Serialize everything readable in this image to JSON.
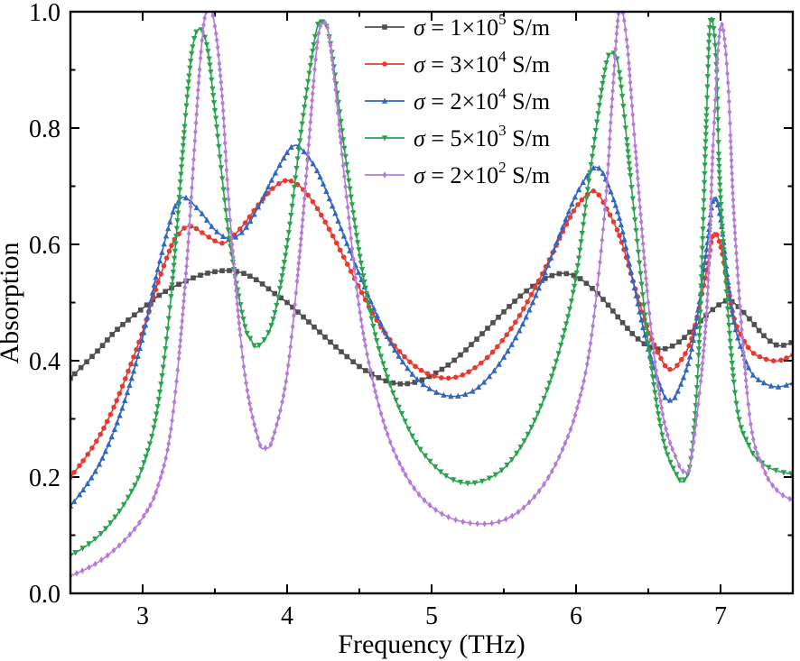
{
  "figure": {
    "background": "#ffffff",
    "frame_color": "#000000"
  },
  "chart_data": {
    "type": "line",
    "title": "",
    "xlabel": "Frequency (THz)",
    "ylabel": "Absorption",
    "xlim": [
      2.5,
      7.5
    ],
    "ylim": [
      0.0,
      1.0
    ],
    "grid": false,
    "legend_position": "top-center",
    "x_major_ticks": [
      3,
      4,
      5,
      6,
      7
    ],
    "x_tick_labels": [
      "3",
      "4",
      "5",
      "6",
      "7"
    ],
    "x_minor_ticks": [
      2.5,
      3.5,
      4.5,
      5.5,
      6.5,
      7.5
    ],
    "y_major_ticks": [
      0.0,
      0.2,
      0.4,
      0.6,
      0.8,
      1.0
    ],
    "y_tick_labels": [
      "0.0",
      "0.2",
      "0.4",
      "0.6",
      "0.8",
      "1.0"
    ],
    "y_minor_ticks": [
      0.1,
      0.3,
      0.5,
      0.7,
      0.9
    ],
    "series": [
      {
        "id": "sigma-1e5",
        "label": "σ = 1×10⁵ S/m",
        "label_sigma": "σ",
        "label_eq": " = 1×10",
        "label_exp": "5",
        "label_unit": " S/m",
        "color": "#4f4f4f",
        "marker": "square",
        "points": [
          [
            2.5,
            0.37
          ],
          [
            2.6,
            0.395
          ],
          [
            2.7,
            0.42
          ],
          [
            2.8,
            0.448
          ],
          [
            2.9,
            0.47
          ],
          [
            3.0,
            0.49
          ],
          [
            3.1,
            0.51
          ],
          [
            3.2,
            0.525
          ],
          [
            3.3,
            0.537
          ],
          [
            3.4,
            0.547
          ],
          [
            3.5,
            0.553
          ],
          [
            3.6,
            0.555
          ],
          [
            3.7,
            0.55
          ],
          [
            3.8,
            0.537
          ],
          [
            3.9,
            0.518
          ],
          [
            4.0,
            0.5
          ],
          [
            4.1,
            0.478
          ],
          [
            4.2,
            0.455
          ],
          [
            4.3,
            0.432
          ],
          [
            4.4,
            0.41
          ],
          [
            4.5,
            0.39
          ],
          [
            4.6,
            0.375
          ],
          [
            4.7,
            0.364
          ],
          [
            4.8,
            0.36
          ],
          [
            4.9,
            0.364
          ],
          [
            5.0,
            0.375
          ],
          [
            5.1,
            0.39
          ],
          [
            5.2,
            0.41
          ],
          [
            5.3,
            0.434
          ],
          [
            5.4,
            0.459
          ],
          [
            5.5,
            0.484
          ],
          [
            5.6,
            0.508
          ],
          [
            5.7,
            0.528
          ],
          [
            5.8,
            0.543
          ],
          [
            5.9,
            0.55
          ],
          [
            6.0,
            0.545
          ],
          [
            6.1,
            0.527
          ],
          [
            6.2,
            0.502
          ],
          [
            6.3,
            0.472
          ],
          [
            6.4,
            0.444
          ],
          [
            6.5,
            0.425
          ],
          [
            6.6,
            0.42
          ],
          [
            6.7,
            0.43
          ],
          [
            6.8,
            0.452
          ],
          [
            6.9,
            0.478
          ],
          [
            7.0,
            0.498
          ],
          [
            7.05,
            0.503
          ],
          [
            7.1,
            0.498
          ],
          [
            7.2,
            0.472
          ],
          [
            7.3,
            0.443
          ],
          [
            7.4,
            0.426
          ],
          [
            7.5,
            0.432
          ]
        ]
      },
      {
        "id": "sigma-3e4",
        "label": "σ = 3×10⁴ S/m",
        "label_sigma": "σ",
        "label_eq": " = 3×10",
        "label_exp": "4",
        "label_unit": " S/m",
        "color": "#e8392f",
        "marker": "circle",
        "points": [
          [
            2.5,
            0.2
          ],
          [
            2.6,
            0.232
          ],
          [
            2.7,
            0.27
          ],
          [
            2.8,
            0.32
          ],
          [
            2.9,
            0.382
          ],
          [
            3.0,
            0.45
          ],
          [
            3.1,
            0.53
          ],
          [
            3.2,
            0.598
          ],
          [
            3.25,
            0.618
          ],
          [
            3.3,
            0.63
          ],
          [
            3.35,
            0.63
          ],
          [
            3.4,
            0.622
          ],
          [
            3.5,
            0.606
          ],
          [
            3.55,
            0.602
          ],
          [
            3.6,
            0.608
          ],
          [
            3.7,
            0.634
          ],
          [
            3.8,
            0.668
          ],
          [
            3.9,
            0.696
          ],
          [
            4.0,
            0.71
          ],
          [
            4.1,
            0.697
          ],
          [
            4.2,
            0.665
          ],
          [
            4.3,
            0.622
          ],
          [
            4.4,
            0.574
          ],
          [
            4.5,
            0.525
          ],
          [
            4.6,
            0.478
          ],
          [
            4.7,
            0.44
          ],
          [
            4.8,
            0.41
          ],
          [
            4.9,
            0.388
          ],
          [
            5.0,
            0.375
          ],
          [
            5.1,
            0.37
          ],
          [
            5.2,
            0.374
          ],
          [
            5.3,
            0.388
          ],
          [
            5.4,
            0.409
          ],
          [
            5.5,
            0.438
          ],
          [
            5.6,
            0.474
          ],
          [
            5.7,
            0.518
          ],
          [
            5.8,
            0.566
          ],
          [
            5.9,
            0.618
          ],
          [
            6.0,
            0.664
          ],
          [
            6.1,
            0.69
          ],
          [
            6.15,
            0.687
          ],
          [
            6.2,
            0.667
          ],
          [
            6.3,
            0.615
          ],
          [
            6.4,
            0.532
          ],
          [
            6.5,
            0.452
          ],
          [
            6.6,
            0.398
          ],
          [
            6.65,
            0.385
          ],
          [
            6.7,
            0.392
          ],
          [
            6.8,
            0.438
          ],
          [
            6.9,
            0.55
          ],
          [
            6.95,
            0.618
          ],
          [
            7.0,
            0.598
          ],
          [
            7.05,
            0.53
          ],
          [
            7.1,
            0.468
          ],
          [
            7.2,
            0.42
          ],
          [
            7.3,
            0.404
          ],
          [
            7.4,
            0.4
          ],
          [
            7.5,
            0.41
          ]
        ]
      },
      {
        "id": "sigma-2e4",
        "label": "σ = 2×10⁴ S/m",
        "label_sigma": "σ",
        "label_eq": " = 2×10",
        "label_exp": "4",
        "label_unit": " S/m",
        "color": "#3166c2",
        "marker": "triangle-up",
        "points": [
          [
            2.5,
            0.15
          ],
          [
            2.6,
            0.182
          ],
          [
            2.7,
            0.222
          ],
          [
            2.8,
            0.278
          ],
          [
            2.9,
            0.35
          ],
          [
            3.0,
            0.44
          ],
          [
            3.1,
            0.552
          ],
          [
            3.2,
            0.648
          ],
          [
            3.25,
            0.675
          ],
          [
            3.3,
            0.68
          ],
          [
            3.4,
            0.656
          ],
          [
            3.5,
            0.625
          ],
          [
            3.6,
            0.61
          ],
          [
            3.7,
            0.624
          ],
          [
            3.8,
            0.664
          ],
          [
            3.9,
            0.714
          ],
          [
            4.0,
            0.758
          ],
          [
            4.05,
            0.77
          ],
          [
            4.1,
            0.764
          ],
          [
            4.2,
            0.73
          ],
          [
            4.3,
            0.674
          ],
          [
            4.4,
            0.61
          ],
          [
            4.5,
            0.548
          ],
          [
            4.6,
            0.49
          ],
          [
            4.7,
            0.438
          ],
          [
            4.8,
            0.398
          ],
          [
            4.9,
            0.368
          ],
          [
            5.0,
            0.35
          ],
          [
            5.1,
            0.34
          ],
          [
            5.2,
            0.34
          ],
          [
            5.3,
            0.35
          ],
          [
            5.4,
            0.373
          ],
          [
            5.5,
            0.406
          ],
          [
            5.6,
            0.448
          ],
          [
            5.7,
            0.5
          ],
          [
            5.8,
            0.56
          ],
          [
            5.9,
            0.625
          ],
          [
            6.0,
            0.685
          ],
          [
            6.1,
            0.726
          ],
          [
            6.15,
            0.732
          ],
          [
            6.2,
            0.715
          ],
          [
            6.3,
            0.645
          ],
          [
            6.4,
            0.53
          ],
          [
            6.5,
            0.42
          ],
          [
            6.6,
            0.345
          ],
          [
            6.65,
            0.332
          ],
          [
            6.7,
            0.345
          ],
          [
            6.8,
            0.42
          ],
          [
            6.9,
            0.585
          ],
          [
            6.95,
            0.678
          ],
          [
            7.0,
            0.645
          ],
          [
            7.05,
            0.54
          ],
          [
            7.1,
            0.458
          ],
          [
            7.2,
            0.385
          ],
          [
            7.3,
            0.362
          ],
          [
            7.4,
            0.355
          ],
          [
            7.5,
            0.362
          ]
        ]
      },
      {
        "id": "sigma-5e3",
        "label": "σ = 5×10³ S/m",
        "label_sigma": "σ",
        "label_eq": " = 5×10",
        "label_exp": "3",
        "label_unit": " S/m",
        "color": "#2ba24e",
        "marker": "triangle-down",
        "points": [
          [
            2.5,
            0.065
          ],
          [
            2.6,
            0.08
          ],
          [
            2.7,
            0.1
          ],
          [
            2.8,
            0.128
          ],
          [
            2.9,
            0.165
          ],
          [
            3.0,
            0.218
          ],
          [
            3.1,
            0.315
          ],
          [
            3.2,
            0.52
          ],
          [
            3.3,
            0.83
          ],
          [
            3.35,
            0.945
          ],
          [
            3.4,
            0.97
          ],
          [
            3.45,
            0.935
          ],
          [
            3.5,
            0.83
          ],
          [
            3.6,
            0.61
          ],
          [
            3.7,
            0.468
          ],
          [
            3.75,
            0.436
          ],
          [
            3.8,
            0.425
          ],
          [
            3.9,
            0.468
          ],
          [
            4.0,
            0.6
          ],
          [
            4.1,
            0.8
          ],
          [
            4.2,
            0.965
          ],
          [
            4.25,
            0.98
          ],
          [
            4.3,
            0.945
          ],
          [
            4.4,
            0.758
          ],
          [
            4.5,
            0.585
          ],
          [
            4.6,
            0.455
          ],
          [
            4.7,
            0.368
          ],
          [
            4.8,
            0.305
          ],
          [
            4.9,
            0.256
          ],
          [
            5.0,
            0.224
          ],
          [
            5.1,
            0.202
          ],
          [
            5.2,
            0.191
          ],
          [
            5.3,
            0.19
          ],
          [
            5.4,
            0.198
          ],
          [
            5.5,
            0.215
          ],
          [
            5.6,
            0.245
          ],
          [
            5.7,
            0.29
          ],
          [
            5.8,
            0.35
          ],
          [
            5.9,
            0.432
          ],
          [
            6.0,
            0.545
          ],
          [
            6.1,
            0.73
          ],
          [
            6.2,
            0.9
          ],
          [
            6.25,
            0.928
          ],
          [
            6.3,
            0.895
          ],
          [
            6.4,
            0.66
          ],
          [
            6.5,
            0.43
          ],
          [
            6.6,
            0.268
          ],
          [
            6.7,
            0.202
          ],
          [
            6.75,
            0.195
          ],
          [
            6.8,
            0.24
          ],
          [
            6.85,
            0.42
          ],
          [
            6.9,
            0.8
          ],
          [
            6.93,
            0.985
          ],
          [
            6.97,
            0.915
          ],
          [
            7.0,
            0.68
          ],
          [
            7.1,
            0.345
          ],
          [
            7.2,
            0.252
          ],
          [
            7.3,
            0.222
          ],
          [
            7.4,
            0.21
          ],
          [
            7.5,
            0.205
          ]
        ]
      },
      {
        "id": "sigma-2e2",
        "label": "σ = 2×10² S/m",
        "label_sigma": "σ",
        "label_eq": " = 2×10",
        "label_exp": "2",
        "label_unit": " S/m",
        "color": "#b57bd8",
        "marker": "diamond",
        "points": [
          [
            2.5,
            0.03
          ],
          [
            2.6,
            0.041
          ],
          [
            2.7,
            0.055
          ],
          [
            2.8,
            0.074
          ],
          [
            2.9,
            0.098
          ],
          [
            3.0,
            0.13
          ],
          [
            3.1,
            0.18
          ],
          [
            3.2,
            0.29
          ],
          [
            3.3,
            0.55
          ],
          [
            3.4,
            0.92
          ],
          [
            3.45,
            1.005
          ],
          [
            3.5,
            0.975
          ],
          [
            3.55,
            0.855
          ],
          [
            3.6,
            0.66
          ],
          [
            3.7,
            0.39
          ],
          [
            3.8,
            0.265
          ],
          [
            3.85,
            0.25
          ],
          [
            3.9,
            0.266
          ],
          [
            4.0,
            0.378
          ],
          [
            4.1,
            0.62
          ],
          [
            4.2,
            0.925
          ],
          [
            4.25,
            0.98
          ],
          [
            4.3,
            0.942
          ],
          [
            4.4,
            0.708
          ],
          [
            4.5,
            0.49
          ],
          [
            4.6,
            0.358
          ],
          [
            4.7,
            0.27
          ],
          [
            4.8,
            0.213
          ],
          [
            4.9,
            0.174
          ],
          [
            5.0,
            0.149
          ],
          [
            5.1,
            0.133
          ],
          [
            5.2,
            0.124
          ],
          [
            5.3,
            0.12
          ],
          [
            5.4,
            0.12
          ],
          [
            5.5,
            0.126
          ],
          [
            5.6,
            0.14
          ],
          [
            5.7,
            0.163
          ],
          [
            5.8,
            0.196
          ],
          [
            5.9,
            0.244
          ],
          [
            6.0,
            0.312
          ],
          [
            6.1,
            0.43
          ],
          [
            6.2,
            0.66
          ],
          [
            6.25,
            0.85
          ],
          [
            6.3,
            1.005
          ],
          [
            6.35,
            0.952
          ],
          [
            6.4,
            0.798
          ],
          [
            6.5,
            0.5
          ],
          [
            6.6,
            0.308
          ],
          [
            6.7,
            0.228
          ],
          [
            6.75,
            0.21
          ],
          [
            6.8,
            0.235
          ],
          [
            6.9,
            0.47
          ],
          [
            6.95,
            0.78
          ],
          [
            7.0,
            0.975
          ],
          [
            7.05,
            0.885
          ],
          [
            7.1,
            0.62
          ],
          [
            7.2,
            0.308
          ],
          [
            7.3,
            0.213
          ],
          [
            7.4,
            0.175
          ],
          [
            7.5,
            0.16
          ]
        ]
      }
    ]
  }
}
